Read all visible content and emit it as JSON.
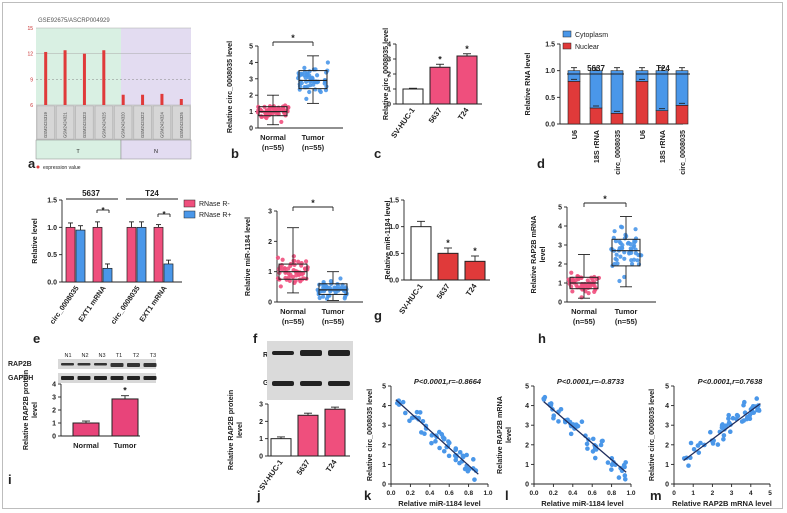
{
  "figure": {
    "border_color": "#bdbdbd"
  },
  "colors": {
    "red": "#e03a3a",
    "pink": "#ef4f7d",
    "blue": "#4a97e9",
    "green_bg": "#d9f0e3",
    "purple_bg": "#e3dcf1",
    "black": "#222222"
  },
  "chart_data": [
    {
      "id": "a",
      "type": "bar",
      "title": "GSE92675/ASCRP004929",
      "categories": [
        "GSM2424319",
        "GSM2424321",
        "GSM2424323",
        "GSM2424325",
        "GSM2424320",
        "GSM2424322",
        "GSM2424324",
        "GSM2424326"
      ],
      "values": [
        12.2,
        12.4,
        12.0,
        12.4,
        7.2,
        7.2,
        7.3,
        6.7
      ],
      "ylim": [
        6,
        15
      ],
      "yticks": [
        "6",
        "9",
        "12",
        "15"
      ],
      "groups": [
        "T",
        "N"
      ],
      "legend": "expression value"
    },
    {
      "id": "b",
      "type": "box",
      "ylabel": "Relative circ_0008035 level",
      "categories": [
        "Normal\n(n=55)",
        "Tumor\n(n=55)"
      ],
      "cat_line1": [
        "Normal",
        "Tumor"
      ],
      "cat_line2": [
        "(n=55)",
        "(n=55)"
      ],
      "ylim": [
        0,
        5
      ],
      "yticks": [
        "0",
        "1",
        "2",
        "3",
        "4",
        "5"
      ],
      "boxes": [
        {
          "min": 0.2,
          "q1": 0.75,
          "median": 1.0,
          "q3": 1.3,
          "max": 2.0
        },
        {
          "min": 1.5,
          "q1": 2.4,
          "median": 2.9,
          "q3": 3.5,
          "max": 4.4
        }
      ],
      "sig": "*"
    },
    {
      "id": "c",
      "type": "bar",
      "ylabel": "Relative circ_0008035 level",
      "categories": [
        "SV-HUC-1",
        "5637",
        "T24"
      ],
      "values": [
        1.0,
        2.45,
        3.2
      ],
      "errors": [
        0.05,
        0.2,
        0.15
      ],
      "ylim": [
        0,
        4
      ],
      "yticks": [
        "0",
        "1",
        "2",
        "3",
        "4"
      ],
      "sig": [
        "",
        "*",
        "*"
      ]
    },
    {
      "id": "d",
      "type": "stacked-bar",
      "ylabel": "Relative RNA level",
      "groups": [
        "5637",
        "T24"
      ],
      "categories": [
        "U6",
        "18S rRNA",
        "circ_0008035",
        "U6",
        "18S rRNA",
        "circ_0008035"
      ],
      "series": [
        {
          "name": "Nuclear",
          "values": [
            0.8,
            0.3,
            0.2,
            0.8,
            0.25,
            0.35
          ]
        },
        {
          "name": "Cytoplasm",
          "values": [
            0.2,
            0.7,
            0.8,
            0.2,
            0.75,
            0.65
          ]
        }
      ],
      "ylim": [
        0,
        1.5
      ],
      "yticks": [
        "0.0",
        "0.5",
        "1.0",
        "1.5"
      ]
    },
    {
      "id": "e",
      "type": "bar",
      "ylabel": "Relative level",
      "groups": [
        "5637",
        "T24"
      ],
      "categories": [
        "circ_0008035",
        "EXT1 mRNA",
        "circ_0008035",
        "EXT1 mRNA"
      ],
      "series": [
        {
          "name": "RNase R-",
          "values": [
            1.0,
            1.0,
            1.0,
            1.0
          ]
        },
        {
          "name": "RNase R+",
          "values": [
            0.95,
            0.25,
            1.0,
            0.33
          ]
        }
      ],
      "errors": [
        [
          0.08,
          0.1,
          0.1,
          0.05
        ],
        [
          0.08,
          0.08,
          0.1,
          0.07
        ]
      ],
      "ylim": [
        0,
        1.5
      ],
      "yticks": [
        "0.0",
        "0.5",
        "1.0",
        "1.5"
      ],
      "sig": "*"
    },
    {
      "id": "f",
      "type": "box",
      "ylabel": "Relative miR-1184 level",
      "categories": [
        "Normal\n(n=55)",
        "Tumor\n(n=55)"
      ],
      "cat_line1": [
        "Normal",
        "Tumor"
      ],
      "cat_line2": [
        "(n=55)",
        "(n=55)"
      ],
      "ylim": [
        0,
        3
      ],
      "yticks": [
        "0",
        "1",
        "2",
        "3"
      ],
      "boxes": [
        {
          "min": 0.3,
          "q1": 0.75,
          "median": 1.0,
          "q3": 1.25,
          "max": 2.45
        },
        {
          "min": 0.05,
          "q1": 0.25,
          "median": 0.4,
          "q3": 0.6,
          "max": 1.0
        }
      ],
      "sig": "*"
    },
    {
      "id": "g",
      "type": "bar",
      "ylabel": "Relative miR-1184 level",
      "categories": [
        "SV-HUC-1",
        "5637",
        "T24"
      ],
      "values": [
        1.0,
        0.5,
        0.35
      ],
      "errors": [
        0.1,
        0.1,
        0.1
      ],
      "ylim": [
        0,
        1.5
      ],
      "yticks": [
        "0.0",
        "0.5",
        "1.0",
        "1.5"
      ],
      "sig": [
        "",
        "*",
        "*"
      ]
    },
    {
      "id": "h",
      "type": "box",
      "ylabel": "Relative RAP2B mRNA level",
      "ylabel_line1": "Relative RAP2B mRNA",
      "ylabel_line2": "level",
      "categories": [
        "Normal\n(n=55)",
        "Tumor\n(n=55)"
      ],
      "cat_line1": [
        "Normal",
        "Tumor"
      ],
      "cat_line2": [
        "(n=55)",
        "(n=55)"
      ],
      "ylim": [
        0,
        5
      ],
      "yticks": [
        "0",
        "1",
        "2",
        "3",
        "4",
        "5"
      ],
      "boxes": [
        {
          "min": 0.2,
          "q1": 0.7,
          "median": 1.0,
          "q3": 1.3,
          "max": 2.5
        },
        {
          "min": 0.8,
          "q1": 1.9,
          "median": 2.7,
          "q3": 3.3,
          "max": 4.5
        }
      ],
      "sig": "*"
    },
    {
      "id": "i",
      "type": "bar",
      "ylabel": "Relative RAP2B protein level",
      "ylabel_line1": "Relative RAP2B protein",
      "ylabel_line2": "level",
      "categories": [
        "Normal",
        "Tumor"
      ],
      "values": [
        1.0,
        2.85
      ],
      "errors": [
        0.15,
        0.25
      ],
      "ylim": [
        0,
        4
      ],
      "yticks": [
        "0",
        "1",
        "2",
        "3",
        "4"
      ],
      "sig": [
        "",
        "*"
      ],
      "blot_lanes": [
        "N1",
        "N2",
        "N3",
        "T1",
        "T2",
        "T3"
      ],
      "blot_rows": [
        "RAP2B",
        "GAPDH"
      ]
    },
    {
      "id": "j",
      "type": "bar",
      "ylabel": "Relative RAP2B protein level",
      "ylabel_line1": "Relative RAP2B protein",
      "ylabel_line2": "level",
      "categories": [
        "SV-HUC-1",
        "5637",
        "T24"
      ],
      "values": [
        1.0,
        2.35,
        2.7
      ],
      "errors": [
        0.1,
        0.12,
        0.12
      ],
      "ylim": [
        0,
        3
      ],
      "yticks": [
        "0",
        "1",
        "2",
        "3"
      ],
      "blot_rows": [
        "RAP2B",
        "GAPDH"
      ]
    },
    {
      "id": "k",
      "type": "scatter",
      "title": "P<0.0001,r=-0.8664",
      "xlabel": "Relative miR-1184 level",
      "ylabel": "Relative circ_0008035 level",
      "xlim": [
        0,
        1.0
      ],
      "ylim": [
        0,
        5
      ],
      "xticks": [
        "0.0",
        "0.2",
        "0.4",
        "0.6",
        "0.8",
        "1.0"
      ],
      "yticks": [
        "0",
        "1",
        "2",
        "3",
        "4",
        "5"
      ],
      "fit": [
        [
          0.05,
          4.3
        ],
        [
          0.9,
          0.5
        ]
      ]
    },
    {
      "id": "l",
      "type": "scatter",
      "title": "P<0.0001,r=-0.8733",
      "xlabel": "Relative miR-1184 level",
      "ylabel": "Relative RAP2B mRNA level",
      "ylabel_line1": "Relative RAP2B mRNA",
      "ylabel_line2": "level",
      "xlim": [
        0,
        1.0
      ],
      "ylim": [
        0,
        5
      ],
      "xticks": [
        "0.0",
        "0.2",
        "0.4",
        "0.6",
        "0.8",
        "1.0"
      ],
      "yticks": [
        "0",
        "1",
        "2",
        "3",
        "4",
        "5"
      ],
      "fit": [
        [
          0.1,
          4.2
        ],
        [
          0.95,
          0.6
        ]
      ]
    },
    {
      "id": "m",
      "type": "scatter",
      "title": "P<0.0001,r=0.7638",
      "xlabel": "Relative RAP2B mRNA level",
      "ylabel": "Relative circ_0008035 level",
      "xlim": [
        0,
        5
      ],
      "ylim": [
        0,
        5
      ],
      "xticks": [
        "0",
        "1",
        "2",
        "3",
        "4",
        "5"
      ],
      "yticks": [
        "0",
        "1",
        "2",
        "3",
        "4",
        "5"
      ],
      "fit": [
        [
          0.5,
          1.2
        ],
        [
          4.5,
          4.1
        ]
      ]
    }
  ]
}
